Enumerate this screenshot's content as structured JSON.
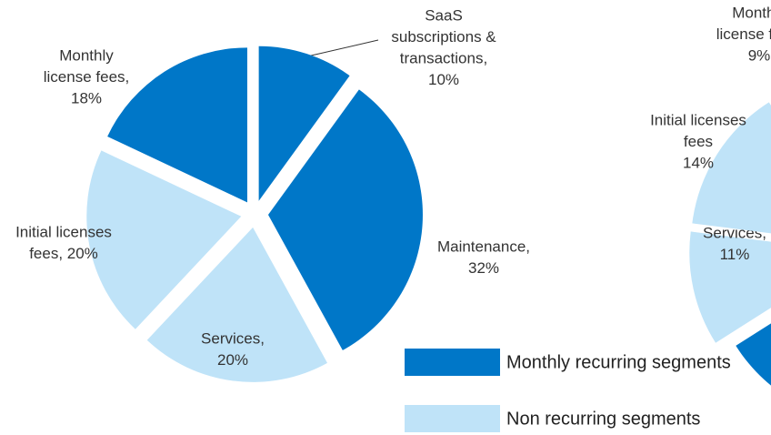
{
  "chart_data": [
    {
      "type": "pie",
      "label_lines": [
        [
          "SaaS",
          "subscriptions &",
          "transactions,",
          "10%"
        ],
        [
          "Maintenance,",
          "32%"
        ],
        [
          "Services,",
          "20%"
        ],
        [
          "Initial licenses",
          "fees, 20%"
        ],
        [
          "Monthly",
          "license fees,",
          "18%"
        ]
      ],
      "values": [
        10,
        32,
        20,
        20,
        18
      ],
      "colors": [
        "#0077c8",
        "#0077c8",
        "#bfe3f8",
        "#bfe3f8",
        "#0077c8"
      ],
      "legend": [
        {
          "name": "Monthly recurring segments",
          "color": "#0077c8"
        },
        {
          "name": "Non recurring segments",
          "color": "#bfe3f8"
        }
      ]
    },
    {
      "type": "pie",
      "label_lines": [
        null,
        [
          "Services,",
          "11%"
        ],
        [
          "Initial licenses",
          "fees",
          "14%"
        ],
        [
          "Monthly",
          "license fees,",
          "9%"
        ]
      ],
      "values": [
        66,
        11,
        14,
        9
      ],
      "colors": [
        "#0077c8",
        "#bfe3f8",
        "#bfe3f8",
        "#bfe3f8"
      ]
    }
  ]
}
